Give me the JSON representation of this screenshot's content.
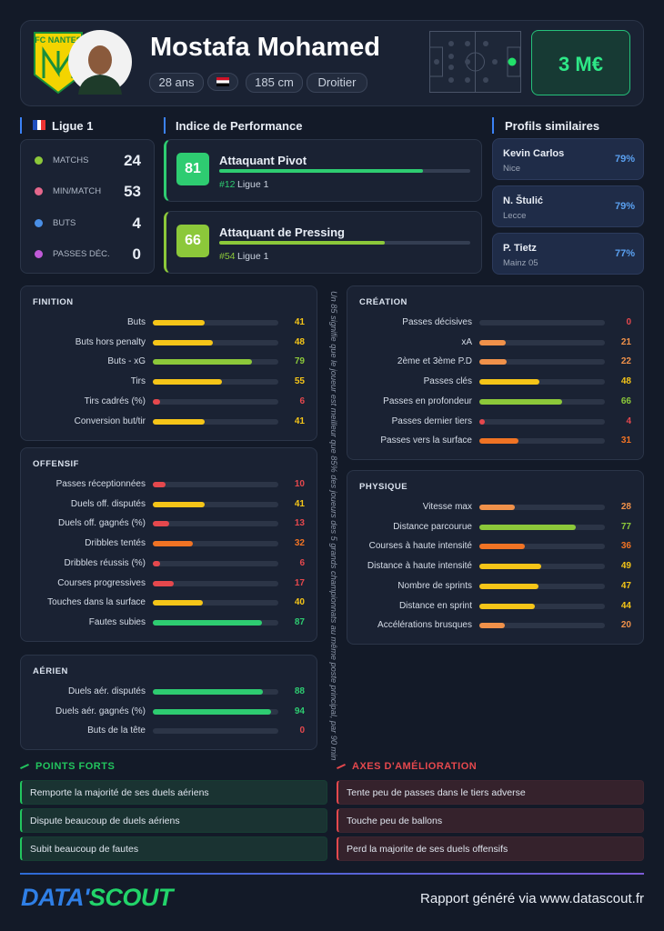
{
  "header": {
    "logo_text": "FC NANTES",
    "name": "Mostafa Mohamed",
    "age": "28 ans",
    "height": "185 cm",
    "foot": "Droitier",
    "market_value": "3 M€"
  },
  "league": {
    "name": "Ligue 1",
    "stats": [
      {
        "label": "MATCHS",
        "value": 24
      },
      {
        "label": "MIN/MATCH",
        "value": 53
      },
      {
        "label": "BUTS",
        "value": 4
      },
      {
        "label": "PASSES DÉC.",
        "value": 0
      }
    ]
  },
  "performance": {
    "title": "Indice de Performance",
    "items": [
      {
        "score": 81,
        "role": "Attaquant Pivot",
        "rank": "#12",
        "league": "Ligue 1"
      },
      {
        "score": 66,
        "role": "Attaquant de Pressing",
        "rank": "#54",
        "league": "Ligue 1"
      }
    ]
  },
  "similar": {
    "title": "Profils similaires",
    "items": [
      {
        "name": "Kevin Carlos",
        "club": "Nice",
        "match": "79%"
      },
      {
        "name": "N. Štulić",
        "club": "Lecce",
        "match": "79%"
      },
      {
        "name": "P. Tietz",
        "club": "Mainz 05",
        "match": "77%"
      }
    ]
  },
  "percentile_range": [
    0,
    100
  ],
  "sections": [
    {
      "title": "FINITION",
      "rows": [
        {
          "label": "Buts",
          "value": 41
        },
        {
          "label": "Buts hors penalty",
          "value": 48
        },
        {
          "label": "Buts - xG",
          "value": 79
        },
        {
          "label": "Tirs",
          "value": 55
        },
        {
          "label": "Tirs cadrés (%)",
          "value": 6
        },
        {
          "label": "Conversion but/tir",
          "value": 41
        }
      ]
    },
    {
      "title": "OFFENSIF",
      "rows": [
        {
          "label": "Passes réceptionnées",
          "value": 10
        },
        {
          "label": "Duels off. disputés",
          "value": 41
        },
        {
          "label": "Duels off. gagnés (%)",
          "value": 13
        },
        {
          "label": "Dribbles tentés",
          "value": 32
        },
        {
          "label": "Dribbles réussis (%)",
          "value": 6
        },
        {
          "label": "Courses progressives",
          "value": 17
        },
        {
          "label": "Touches dans la surface",
          "value": 40
        },
        {
          "label": "Fautes subies",
          "value": 87
        }
      ]
    },
    {
      "title": "AÉRIEN",
      "rows": [
        {
          "label": "Duels aér. disputés",
          "value": 88
        },
        {
          "label": "Duels aér. gagnés (%)",
          "value": 94
        },
        {
          "label": "Buts de la tête",
          "value": 0
        }
      ]
    },
    {
      "title": "CRÉATION",
      "rows": [
        {
          "label": "Passes décisives",
          "value": 0
        },
        {
          "label": "xA",
          "value": 21
        },
        {
          "label": "2ème et 3ème P.D",
          "value": 22
        },
        {
          "label": "Passes clés",
          "value": 48
        },
        {
          "label": "Passes en profondeur",
          "value": 66
        },
        {
          "label": "Passes dernier tiers",
          "value": 4
        },
        {
          "label": "Passes vers la surface",
          "value": 31
        }
      ]
    },
    {
      "title": "PHYSIQUE",
      "rows": [
        {
          "label": "Vitesse max",
          "value": 28
        },
        {
          "label": "Distance parcourue",
          "value": 77
        },
        {
          "label": "Courses à haute intensité",
          "value": 36
        },
        {
          "label": "Distance à haute intensité",
          "value": 49
        },
        {
          "label": "Nombre de sprints",
          "value": 47
        },
        {
          "label": "Distance en sprint",
          "value": 44
        },
        {
          "label": "Accélérations brusques",
          "value": 20
        }
      ]
    }
  ],
  "note": "Un 85 signifie que le joueur est meilleur que 85% des joueurs des 5 grands championnats au même poste principal, par 90 min",
  "strengths": {
    "title": "POINTS FORTS",
    "items": [
      "Remporte la majorité de ses duels aériens",
      "Dispute beaucoup de duels aériens",
      "Subit beaucoup de fautes"
    ]
  },
  "improvements": {
    "title": "AXES D'AMÉLIORATION",
    "items": [
      "Tente peu de passes dans le tiers adverse",
      "Touche peu de ballons",
      "Perd la majorite de ses duels offensifs"
    ]
  },
  "footer": {
    "brand_left": "DATA'",
    "brand_right": "SCOUT",
    "text": "Rapport généré via www.datascout.fr"
  }
}
